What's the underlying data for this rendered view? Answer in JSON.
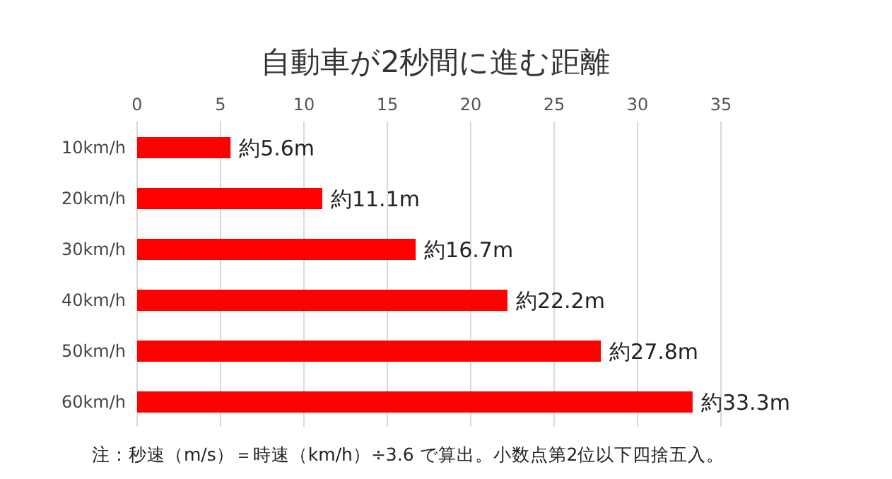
{
  "chart_data": {
    "type": "bar",
    "orientation": "horizontal",
    "title": "自動車が2秒間に進む距離",
    "categories": [
      "10km/h",
      "20km/h",
      "30km/h",
      "40km/h",
      "50km/h",
      "60km/h"
    ],
    "values": [
      5.6,
      11.1,
      16.7,
      22.2,
      27.8,
      33.3
    ],
    "value_labels": [
      "約5.6m",
      "約11.1m",
      "約16.7m",
      "約22.2m",
      "約27.8m",
      "約33.3m"
    ],
    "color": "#ff0000",
    "xlim": [
      0,
      35
    ],
    "xticks": [
      0,
      5,
      10,
      15,
      20,
      25,
      30,
      35
    ],
    "grid": "x",
    "annotations": [
      "注：秒速（m/s）＝時速（km/h）÷3.6 で算出。小数点第2位以下四捨五入。"
    ]
  }
}
